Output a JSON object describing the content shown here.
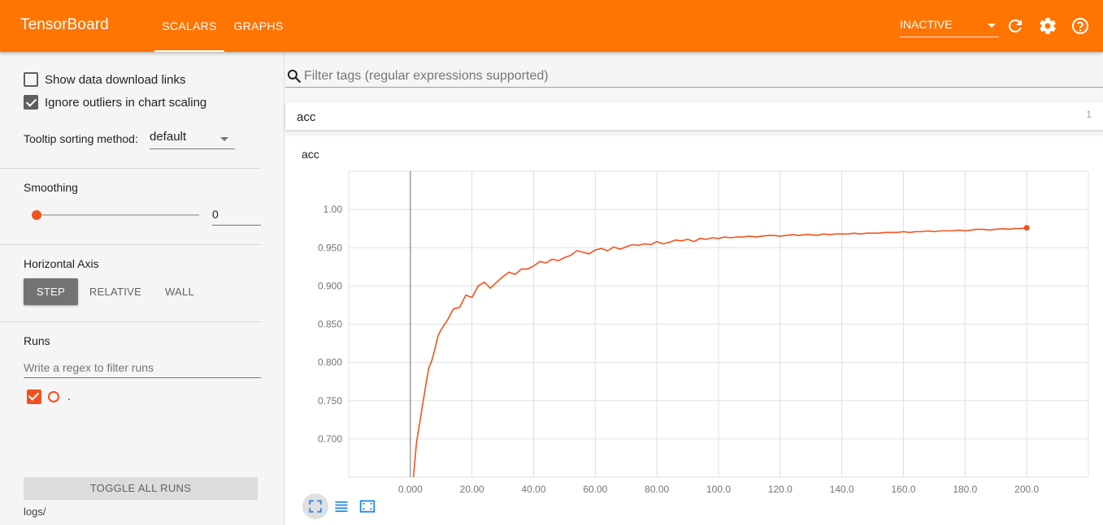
{
  "header": {
    "brand": "TensorBoard",
    "tabs": [
      {
        "label": "SCALARS",
        "active": true
      },
      {
        "label": "GRAPHS",
        "active": false
      }
    ],
    "status": "INACTIVE",
    "icons": [
      "refresh-icon",
      "settings-icon",
      "help-icon"
    ]
  },
  "sidebar": {
    "show_download_links": {
      "label": "Show data download links",
      "checked": false
    },
    "ignore_outliers": {
      "label": "Ignore outliers in chart scaling",
      "checked": true
    },
    "tooltip_sorting": {
      "label": "Tooltip sorting method:",
      "value": "default"
    },
    "smoothing": {
      "label": "Smoothing",
      "value": "0",
      "level": 0
    },
    "horizontal_axis": {
      "label": "Horizontal Axis",
      "options": [
        "STEP",
        "RELATIVE",
        "WALL"
      ],
      "selected": "STEP"
    },
    "runs": {
      "label": "Runs",
      "filter_placeholder": "Write a regex to filter runs",
      "items": [
        {
          "name": ".",
          "checked": true
        }
      ]
    },
    "toggle_all": "TOGGLE ALL RUNS",
    "logdir": "logs/"
  },
  "main": {
    "filter_placeholder": "Filter tags (regular expressions supported)",
    "category": {
      "name": "acc",
      "count": "1"
    },
    "card_title": "acc"
  },
  "colors": {
    "accent": "#ff7503",
    "series": "#f4511e"
  },
  "chart_data": {
    "type": "line",
    "title": "acc",
    "xlabel": "",
    "ylabel": "",
    "xlim": [
      -20,
      220
    ],
    "ylim": [
      0.65,
      1.05
    ],
    "x_ticks": [
      "0.000",
      "20.00",
      "40.00",
      "60.00",
      "80.00",
      "100.0",
      "120.0",
      "140.0",
      "160.0",
      "180.0",
      "200.0"
    ],
    "y_ticks": [
      "1.00",
      "0.950",
      "0.900",
      "0.850",
      "0.800",
      "0.750",
      "0.700"
    ],
    "grid": true,
    "series": [
      {
        "x": [
          1,
          2,
          3,
          4,
          5,
          6,
          7,
          8,
          9,
          10,
          12,
          14,
          16,
          18,
          20,
          22,
          24,
          26,
          28,
          30,
          32,
          34,
          36,
          38,
          40,
          42,
          44,
          46,
          48,
          50,
          52,
          54,
          56,
          58,
          60,
          62,
          64,
          66,
          68,
          70,
          72,
          74,
          76,
          78,
          80,
          82,
          84,
          86,
          88,
          90,
          92,
          94,
          96,
          98,
          100,
          102,
          104,
          106,
          108,
          110,
          112,
          114,
          116,
          118,
          120,
          122,
          124,
          126,
          128,
          130,
          132,
          134,
          136,
          138,
          140,
          142,
          144,
          146,
          148,
          150,
          152,
          154,
          156,
          158,
          160,
          162,
          164,
          166,
          168,
          170,
          172,
          174,
          176,
          178,
          180,
          182,
          184,
          186,
          188,
          190,
          192,
          194,
          196,
          198,
          200
        ],
        "y": [
          0.65,
          0.695,
          0.72,
          0.745,
          0.77,
          0.793,
          0.803,
          0.818,
          0.835,
          0.843,
          0.855,
          0.87,
          0.872,
          0.888,
          0.885,
          0.9,
          0.905,
          0.897,
          0.905,
          0.912,
          0.918,
          0.915,
          0.922,
          0.922,
          0.926,
          0.932,
          0.93,
          0.935,
          0.933,
          0.937,
          0.94,
          0.946,
          0.944,
          0.942,
          0.947,
          0.949,
          0.946,
          0.951,
          0.948,
          0.951,
          0.954,
          0.953,
          0.955,
          0.954,
          0.958,
          0.955,
          0.957,
          0.96,
          0.959,
          0.961,
          0.958,
          0.962,
          0.961,
          0.963,
          0.962,
          0.964,
          0.963,
          0.964,
          0.964,
          0.965,
          0.964,
          0.965,
          0.966,
          0.966,
          0.965,
          0.966,
          0.967,
          0.966,
          0.967,
          0.967,
          0.966,
          0.968,
          0.967,
          0.968,
          0.968,
          0.968,
          0.969,
          0.968,
          0.969,
          0.969,
          0.969,
          0.97,
          0.97,
          0.97,
          0.971,
          0.97,
          0.971,
          0.971,
          0.972,
          0.971,
          0.972,
          0.972,
          0.972,
          0.973,
          0.972,
          0.973,
          0.974,
          0.974,
          0.973,
          0.974,
          0.975,
          0.974,
          0.975,
          0.975,
          0.976
        ]
      }
    ]
  }
}
